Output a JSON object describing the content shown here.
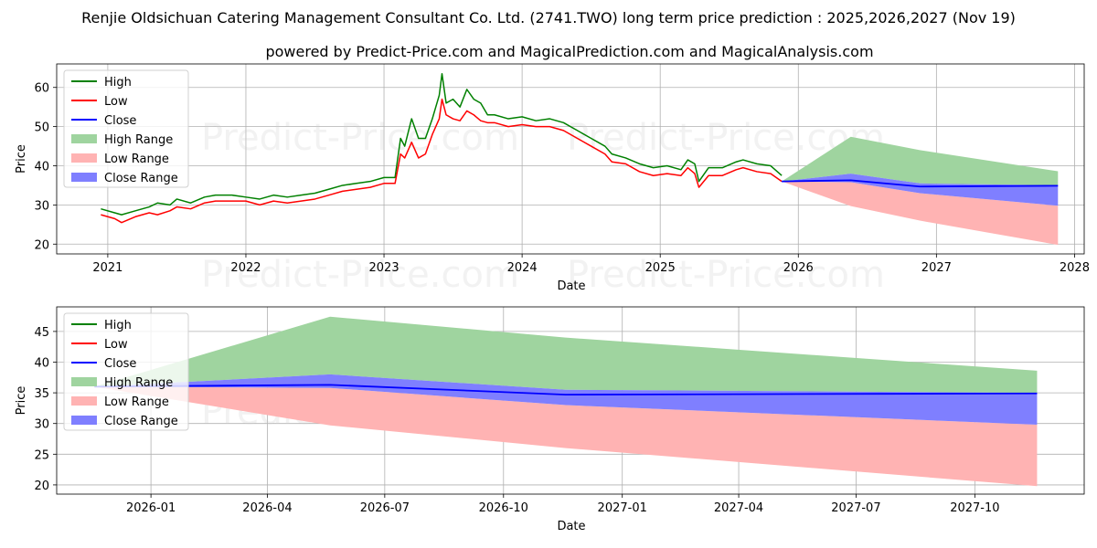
{
  "title": "Renjie Oldsichuan Catering Management Consultant Co. Ltd. (2741.TWO) long term price prediction : 2025,2026,2027 (Nov 19)",
  "subtitle": "powered by Predict-Price.com and MagicalPrediction.com and MagicalAnalysis.com",
  "watermark": "Predict-Price.com",
  "colors": {
    "high": "#008000",
    "low": "#ff0000",
    "close": "#0000ff",
    "high_range": "#9fd49f",
    "low_range": "#ffb3b3",
    "close_range": "#7f7fff",
    "grid": "#b0b0b0"
  },
  "legend": [
    "High",
    "Low",
    "Close",
    "High Range",
    "Low Range",
    "Close Range"
  ],
  "chart_data": [
    {
      "type": "line",
      "xlabel": "Date",
      "ylabel": "Price",
      "xlim": [
        2020.63,
        2028.07
      ],
      "ylim": [
        17.5,
        66
      ],
      "xticks": [
        2021,
        2022,
        2023,
        2024,
        2025,
        2026,
        2027,
        2028
      ],
      "xtick_labels": [
        "2021",
        "2022",
        "2023",
        "2024",
        "2025",
        "2026",
        "2027",
        "2028"
      ],
      "yticks": [
        20,
        30,
        40,
        50,
        60
      ],
      "ytick_labels": [
        "20",
        "30",
        "40",
        "50",
        "60"
      ],
      "legend_position": "top-left",
      "history": {
        "x": [
          2020.95,
          2021.05,
          2021.1,
          2021.2,
          2021.3,
          2021.36,
          2021.45,
          2021.5,
          2021.6,
          2021.7,
          2021.78,
          2021.9,
          2022.0,
          2022.1,
          2022.2,
          2022.3,
          2022.4,
          2022.5,
          2022.6,
          2022.7,
          2022.8,
          2022.9,
          2023.0,
          2023.08,
          2023.12,
          2023.15,
          2023.2,
          2023.25,
          2023.3,
          2023.35,
          2023.4,
          2023.42,
          2023.45,
          2023.5,
          2023.55,
          2023.6,
          2023.65,
          2023.7,
          2023.75,
          2023.8,
          2023.9,
          2024.0,
          2024.1,
          2024.2,
          2024.3,
          2024.4,
          2024.5,
          2024.6,
          2024.65,
          2024.75,
          2024.85,
          2024.95,
          2025.05,
          2025.15,
          2025.2,
          2025.25,
          2025.28,
          2025.35,
          2025.45,
          2025.55,
          2025.6,
          2025.7,
          2025.8,
          2025.88
        ],
        "high": [
          29,
          28,
          27.5,
          28.5,
          29.5,
          30.5,
          30,
          31.5,
          30.5,
          32,
          32.5,
          32.5,
          32,
          31.5,
          32.5,
          32,
          32.5,
          33,
          34,
          35,
          35.5,
          36,
          37,
          37,
          47,
          45,
          52,
          47,
          47,
          52,
          58,
          63.5,
          56,
          57,
          55,
          59.5,
          57,
          56,
          53,
          53,
          52,
          52.5,
          51.5,
          52,
          51,
          49,
          47,
          45,
          43,
          42,
          40.5,
          39.5,
          40,
          39,
          41.5,
          40.5,
          36,
          39.5,
          39.5,
          41,
          41.5,
          40.5,
          40,
          37.5
        ],
        "low": [
          27.5,
          26.5,
          25.5,
          27,
          28,
          27.5,
          28.5,
          29.5,
          29,
          30.5,
          31,
          31,
          31,
          30,
          31,
          30.5,
          31,
          31.5,
          32.5,
          33.5,
          34,
          34.5,
          35.5,
          35.5,
          43,
          42,
          46,
          42,
          43,
          48,
          52,
          57,
          53,
          52,
          51.5,
          54,
          53,
          51.5,
          51,
          51,
          50,
          50.5,
          50,
          50,
          49,
          47,
          45,
          43,
          41,
          40.5,
          38.5,
          37.5,
          38,
          37.5,
          39.5,
          38,
          34.5,
          37.5,
          37.5,
          39,
          39.5,
          38.5,
          38,
          36
        ]
      },
      "forecast": {
        "x": [
          2025.88,
          2026.38,
          2026.88,
          2027.88
        ],
        "close": [
          36,
          36.3,
          34.7,
          34.9
        ],
        "high_range_top": [
          36,
          47.4,
          44,
          38.6
        ],
        "close_range_top": [
          36,
          38,
          35.5,
          35
        ],
        "close_range_bottom": [
          36,
          35.8,
          33,
          29.8
        ],
        "low_range_bottom": [
          36,
          29.7,
          26,
          19.8
        ]
      }
    },
    {
      "type": "line",
      "xlabel": "Date",
      "ylabel": "Price",
      "xlim": [
        2025.8,
        2027.98
      ],
      "ylim": [
        18.5,
        49
      ],
      "xticks": [
        2026.0,
        2026.247,
        2026.496,
        2026.748,
        2027.0,
        2027.247,
        2027.496,
        2027.748
      ],
      "xtick_labels": [
        "2026-01",
        "2026-04",
        "2026-07",
        "2026-10",
        "2027-01",
        "2027-04",
        "2027-07",
        "2027-10"
      ],
      "yticks": [
        20,
        25,
        30,
        35,
        40,
        45
      ],
      "ytick_labels": [
        "20",
        "25",
        "30",
        "35",
        "40",
        "45"
      ],
      "legend_position": "top-left",
      "forecast": {
        "x": [
          2025.88,
          2026.38,
          2026.88,
          2027.88
        ],
        "close": [
          36,
          36.3,
          34.7,
          34.9
        ],
        "high_range_top": [
          36,
          47.4,
          44,
          38.6
        ],
        "close_range_top": [
          36,
          38,
          35.5,
          35
        ],
        "close_range_bottom": [
          36,
          35.8,
          33,
          29.8
        ],
        "low_range_bottom": [
          36,
          29.7,
          26,
          19.8
        ]
      }
    }
  ]
}
